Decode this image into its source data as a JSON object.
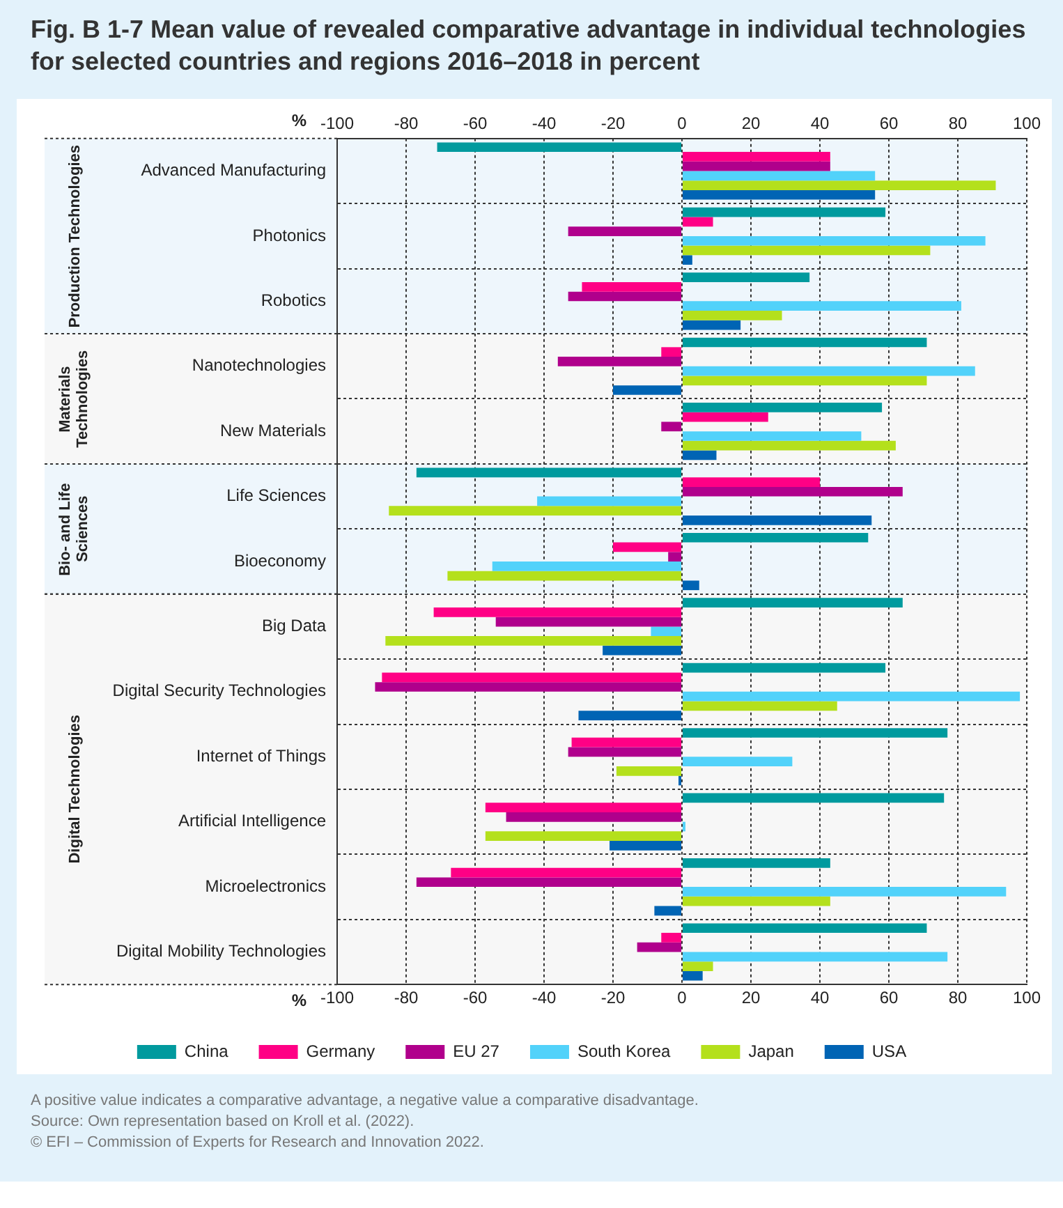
{
  "chart_data": {
    "type": "bar",
    "orientation": "horizontal",
    "title": "Fig. B 1-7 Mean value of revealed comparative advantage in individual technologies for selected countries and regions 2016–2018 in percent",
    "categories": [
      "Advanced Manufacturing",
      "Photonics",
      "Robotics",
      "Nanotechnologies",
      "New Materials",
      "Life Sciences",
      "Bioeconomy",
      "Big Data",
      "Digital Security Technologies",
      "Internet of Things",
      "Artificial Intelligence",
      "Microelectronics",
      "Digital Mobility Technologies"
    ],
    "series": [
      {
        "name": "China",
        "color": "#009a9e",
        "values": [
          -71,
          59,
          37,
          71,
          58,
          -77,
          54,
          64,
          59,
          77,
          76,
          43,
          71
        ]
      },
      {
        "name": "Germany",
        "color": "#ff0085",
        "values": [
          43,
          9,
          -29,
          -6,
          25,
          40,
          -20,
          -72,
          -87,
          -32,
          -57,
          -67,
          -6
        ]
      },
      {
        "name": "EU 27",
        "color": "#b0008c",
        "values": [
          43,
          -33,
          -33,
          -36,
          -6,
          64,
          -4,
          -54,
          -89,
          -33,
          -51,
          -77,
          -13
        ]
      },
      {
        "name": "South Korea",
        "color": "#52d2fa",
        "values": [
          56,
          88,
          81,
          85,
          52,
          -42,
          -55,
          -9,
          98,
          32,
          1,
          94,
          77
        ]
      },
      {
        "name": "Japan",
        "color": "#b4e01c",
        "values": [
          91,
          72,
          29,
          71,
          62,
          -85,
          -68,
          -86,
          45,
          -19,
          -57,
          43,
          9
        ]
      },
      {
        "name": "USA",
        "color": "#0064b4",
        "values": [
          56,
          3,
          17,
          -20,
          10,
          55,
          5,
          -23,
          -30,
          -1,
          -21,
          -8,
          6
        ]
      }
    ],
    "xlim": [
      -100,
      100
    ],
    "xticks": [
      -100,
      -80,
      -60,
      -40,
      -20,
      0,
      20,
      40,
      60,
      80,
      100
    ],
    "x2lim": [
      -100,
      100
    ],
    "x2ticks": [
      -100,
      -80,
      -60,
      -40,
      -20,
      0,
      20,
      40,
      60,
      80,
      100
    ],
    "xlabel": "%",
    "x2label": "%",
    "grid": true,
    "legend": "bottom",
    "bands": [
      {
        "axis": "y",
        "from": "Advanced Manufacturing",
        "to": "Robotics",
        "label": "Production Technologies",
        "color": "#eef6fc"
      },
      {
        "axis": "y",
        "from": "Nanotechnologies",
        "to": "New Materials",
        "label": "Materials Technologies",
        "color": "#f7f7f7"
      },
      {
        "axis": "y",
        "from": "Life Sciences",
        "to": "Bioeconomy",
        "label": "Bio- and Life Sciences",
        "color": "#eef6fc"
      },
      {
        "axis": "y",
        "from": "Big Data",
        "to": "Digital Mobility Technologies",
        "label": "Digital Technologies",
        "color": "#f7f7f7"
      }
    ],
    "annotations": [
      "A positive value indicates a comparative advantage, a negative value a comparative disadvantage.",
      "Source: Own representation based on Kroll et al. (2022).",
      "© EFI – Commission of Experts for Research and Innovation 2022."
    ]
  }
}
